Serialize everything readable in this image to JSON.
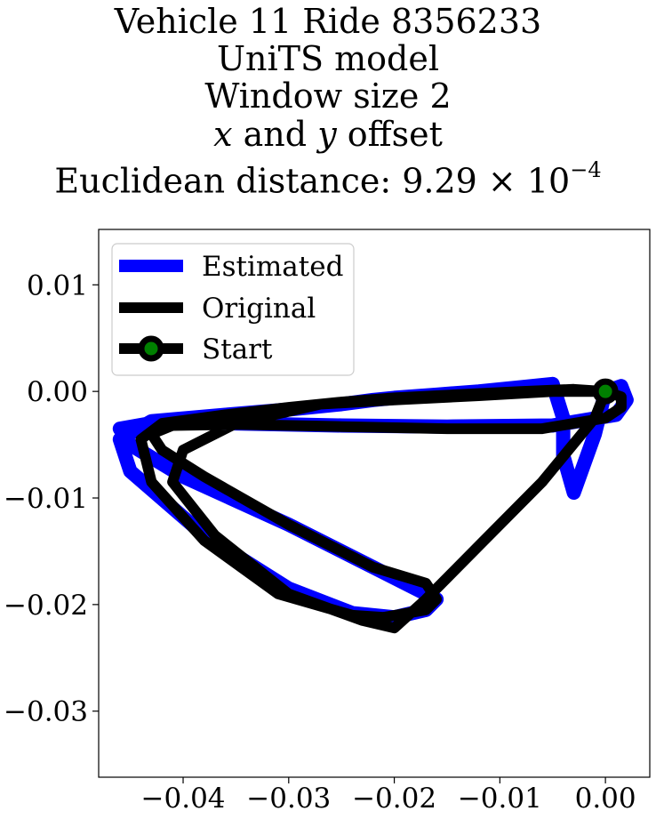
{
  "title": {
    "line1": "Vehicle 11 Ride 8356233",
    "line2": "UniTS model",
    "line3": "Window size 2",
    "line4_x": "x",
    "line4_and": " and ",
    "line4_y": "y",
    "line4_rest": " offset",
    "line5_prefix": "Euclidean distance: 9.29 × 10",
    "line5_exp": "−4"
  },
  "colors": {
    "estimated": "#0000ff",
    "original": "#000000",
    "start_marker_face": "#008000",
    "start_marker_edge": "#000000"
  },
  "chart_data": {
    "type": "line",
    "title": "Vehicle 11 Ride 8356233 UniTS model Window size 2 x and y offset Euclidean distance: 9.29×10^-4",
    "xlabel": "",
    "ylabel": "",
    "xlim": [
      -0.048,
      0.0042
    ],
    "ylim": [
      -0.0362,
      0.0152
    ],
    "xticks": [
      -0.04,
      -0.03,
      -0.02,
      -0.01,
      0.0
    ],
    "xtick_labels": [
      "−0.04",
      "−0.03",
      "−0.02",
      "−0.01",
      "0.00"
    ],
    "yticks": [
      0.01,
      0.0,
      -0.01,
      -0.02,
      -0.03
    ],
    "ytick_labels": [
      "0.01",
      "0.00",
      "−0.01",
      "−0.02",
      "−0.03"
    ],
    "grid": false,
    "legend_position": "upper-left",
    "series": [
      {
        "name": "Estimated",
        "color": "#0000ff",
        "x": [
          0.0,
          0.0015,
          0.002,
          0.001,
          -0.005,
          -0.015,
          -0.025,
          -0.035,
          -0.042,
          -0.046,
          -0.045,
          -0.04,
          -0.03,
          -0.022,
          -0.018,
          -0.016,
          -0.017,
          -0.02,
          -0.024,
          -0.03,
          -0.038,
          -0.045,
          -0.046,
          -0.043,
          -0.036,
          -0.03,
          -0.025,
          -0.022,
          -0.02,
          -0.016,
          -0.012,
          -0.008,
          -0.005,
          -0.004,
          -0.004,
          -0.003,
          -0.001,
          0.0
        ],
        "y": [
          0.0,
          0.0005,
          -0.0008,
          -0.0022,
          -0.0032,
          -0.0033,
          -0.0032,
          -0.003,
          -0.0028,
          -0.0035,
          -0.005,
          -0.008,
          -0.0125,
          -0.0165,
          -0.0185,
          -0.0195,
          -0.0205,
          -0.0212,
          -0.0208,
          -0.0185,
          -0.0135,
          -0.0075,
          -0.0045,
          -0.0028,
          -0.0022,
          -0.0017,
          -0.0012,
          -0.0008,
          -0.0006,
          -0.0003,
          0.0,
          0.0004,
          0.0007,
          -0.0025,
          -0.006,
          -0.0095,
          -0.004,
          0.0
        ]
      },
      {
        "name": "Original",
        "color": "#000000",
        "x": [
          0.0,
          0.0015,
          0.0015,
          0.0,
          -0.006,
          -0.015,
          -0.025,
          -0.035,
          -0.041,
          -0.043,
          -0.042,
          -0.038,
          -0.03,
          -0.022,
          -0.017,
          -0.016,
          -0.017,
          -0.021,
          -0.024,
          -0.031,
          -0.038,
          -0.043,
          -0.044,
          -0.042,
          -0.036,
          -0.03,
          -0.025,
          -0.02,
          -0.014,
          -0.008,
          -0.003,
          0.0,
          -0.001,
          -0.006,
          -0.012,
          -0.017,
          -0.02,
          -0.023,
          -0.03,
          -0.037,
          -0.041,
          -0.04,
          -0.035,
          -0.027,
          -0.02,
          -0.012,
          -0.005,
          -0.0015,
          0.0
        ],
        "y": [
          0.0,
          -0.0005,
          -0.0015,
          -0.0025,
          -0.0035,
          -0.0035,
          -0.0033,
          -0.0031,
          -0.0032,
          -0.004,
          -0.0055,
          -0.008,
          -0.0125,
          -0.0165,
          -0.018,
          -0.0195,
          -0.0205,
          -0.0212,
          -0.021,
          -0.019,
          -0.014,
          -0.0085,
          -0.0045,
          -0.003,
          -0.0022,
          -0.0015,
          -0.001,
          -0.0006,
          -0.0003,
          0.0,
          0.0002,
          0.0,
          -0.0025,
          -0.0085,
          -0.0145,
          -0.0195,
          -0.0222,
          -0.0215,
          -0.019,
          -0.0135,
          -0.0085,
          -0.0055,
          -0.003,
          -0.0012,
          -0.0008,
          -0.0004,
          0.0,
          0.0,
          0.0
        ]
      },
      {
        "name": "Start",
        "type": "marker",
        "x": [
          0.0
        ],
        "y": [
          0.0
        ]
      }
    ]
  }
}
